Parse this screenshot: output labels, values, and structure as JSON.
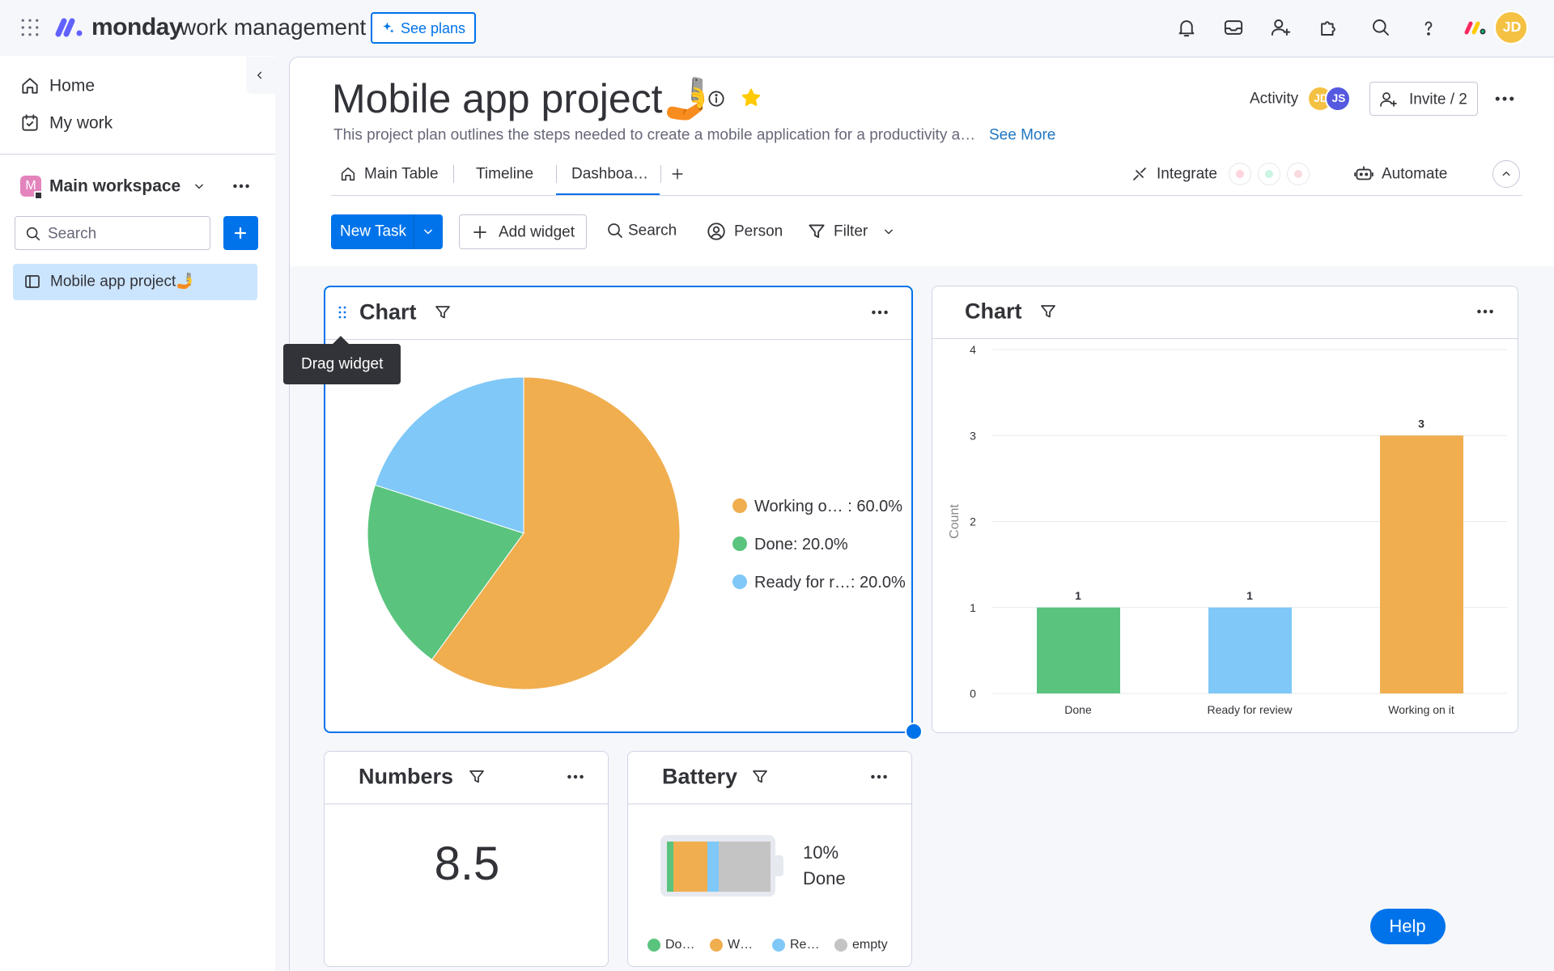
{
  "top_bar": {
    "brand": "monday",
    "product": "work management",
    "see_plans": "See plans",
    "avatar": "JD"
  },
  "sidebar": {
    "nav": [
      "Home",
      "My work"
    ],
    "workspace": "Main workspace",
    "workspace_initial": "M",
    "search_placeholder": "Search",
    "boards": [
      "Mobile app project🤳"
    ]
  },
  "board": {
    "title": "Mobile app project🤳",
    "description": "This project plan outlines the steps needed to create a mobile application for a productivity a…",
    "see_more": "See More",
    "activity": "Activity",
    "members": [
      "JD",
      "JS"
    ],
    "invite": "Invite / 2",
    "tabs": [
      "Main Table",
      "Timeline",
      "Dashboa…"
    ],
    "integrate": "Integrate",
    "automate": "Automate"
  },
  "toolbar": {
    "new_task": "New Task",
    "add_widget": "Add widget",
    "search": "Search",
    "person": "Person",
    "filter": "Filter"
  },
  "widgets": [
    {
      "title": "Chart",
      "tooltip": "Drag widget",
      "chart_data": {
        "type": "pie",
        "categories": [
          "Working o… : 60.0%",
          "Done: 20.0%",
          "Ready for r…: 20.0%"
        ],
        "values": [
          60,
          20,
          20
        ],
        "colors": [
          "#f0ae4f",
          "#5ac47e",
          "#7fc8f8"
        ],
        "legend": "right"
      }
    },
    {
      "title": "Chart",
      "chart_data": {
        "type": "bar",
        "categories": [
          "Done",
          "Ready for review",
          "Working on it"
        ],
        "values": [
          1,
          1,
          3
        ],
        "colors": [
          "#5ac47e",
          "#7fc8f8",
          "#f0ae4f"
        ],
        "y_label": "Count",
        "ylim": [
          0,
          4
        ],
        "yticks": [
          0,
          1,
          2,
          3,
          4
        ],
        "grid": true
      }
    },
    {
      "title": "Numbers",
      "value": 8.5
    },
    {
      "title": "Battery",
      "percent": "10%",
      "status": "Done",
      "legend": [
        "Do…",
        "W…",
        "Re…",
        "empty"
      ]
    }
  ],
  "help": "Help"
}
